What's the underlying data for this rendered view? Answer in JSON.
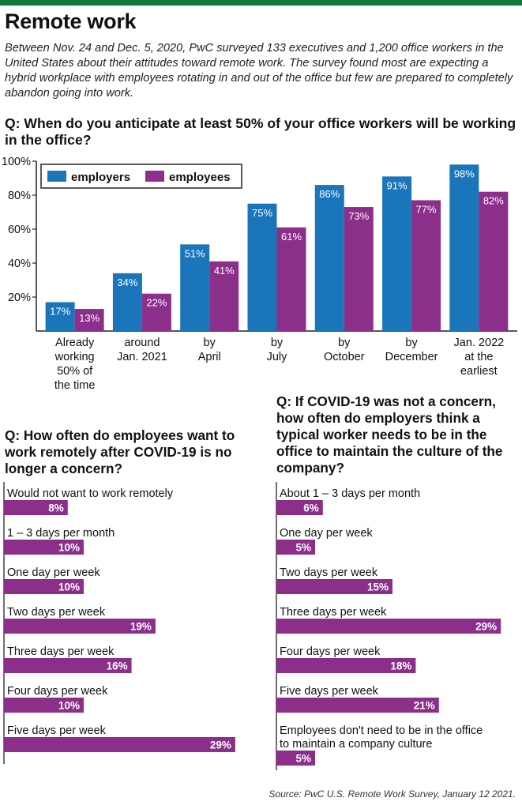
{
  "page": {
    "title": "Remote work",
    "intro": "Between Nov. 24 and Dec. 5, 2020, PwC surveyed 133 executives and 1,200 office workers in the United States about their attitudes toward remote work. The survey found most are expecting a hybrid workplace with employees rotating in and out of the office but few are prepared to completely abandon going into work.",
    "source": "Source: PwC U.S. Remote Work Survey, January 12 2021."
  },
  "colors": {
    "employers": "#1b75bb",
    "employees": "#8b2f8b",
    "accent_bar": "#0f7a3b"
  },
  "chart_data": [
    {
      "type": "bar",
      "title": "Q: When do you anticipate at least 50% of your office workers will be working in the office?",
      "categories": [
        [
          "Already",
          "working",
          "50% of",
          "the time"
        ],
        [
          "around",
          "Jan. 2021"
        ],
        [
          "by",
          "April"
        ],
        [
          "by",
          "July"
        ],
        [
          "by",
          "October"
        ],
        [
          "by",
          "December"
        ],
        [
          "Jan. 2022",
          "at the",
          "earliest"
        ]
      ],
      "series": [
        {
          "name": "employers",
          "values": [
            17,
            34,
            51,
            75,
            86,
            91,
            98
          ]
        },
        {
          "name": "employees",
          "values": [
            13,
            22,
            41,
            61,
            73,
            77,
            82
          ]
        }
      ],
      "yticks": [
        "20%",
        "40%",
        "60%",
        "80%",
        "100%"
      ],
      "ylim": [
        0,
        100
      ],
      "legend": "top-left",
      "grid": false
    },
    {
      "type": "bar",
      "orientation": "horizontal",
      "title": "Q: How often do employees want to work remotely after COVID-19 is no longer a concern?",
      "categories": [
        "Would not want to work remotely",
        "1 – 3 days per month",
        "One day per week",
        "Two days per week",
        "Three days per week",
        "Four days per week",
        "Five days per week"
      ],
      "values": [
        8,
        10,
        10,
        19,
        16,
        10,
        29
      ],
      "labels": [
        "8%",
        "10%",
        "10%",
        "19%",
        "16%",
        "10%",
        "29%"
      ]
    },
    {
      "type": "bar",
      "orientation": "horizontal",
      "title": "Q: If COVID-19 was not a concern, how often do employers think a typical worker needs to be in the office to maintain the culture of the company?",
      "categories": [
        [
          "About 1 – 3 days per month"
        ],
        [
          "One day per week"
        ],
        [
          "Two days per week"
        ],
        [
          "Three days per week"
        ],
        [
          "Four days per week"
        ],
        [
          "Five days per week"
        ],
        [
          "Employees don't need to be in the office",
          "to maintain a company culture"
        ]
      ],
      "values": [
        6,
        5,
        15,
        29,
        18,
        21,
        5
      ],
      "labels": [
        "6%",
        "5%",
        "15%",
        "29%",
        "18%",
        "21%",
        "5%"
      ]
    }
  ]
}
